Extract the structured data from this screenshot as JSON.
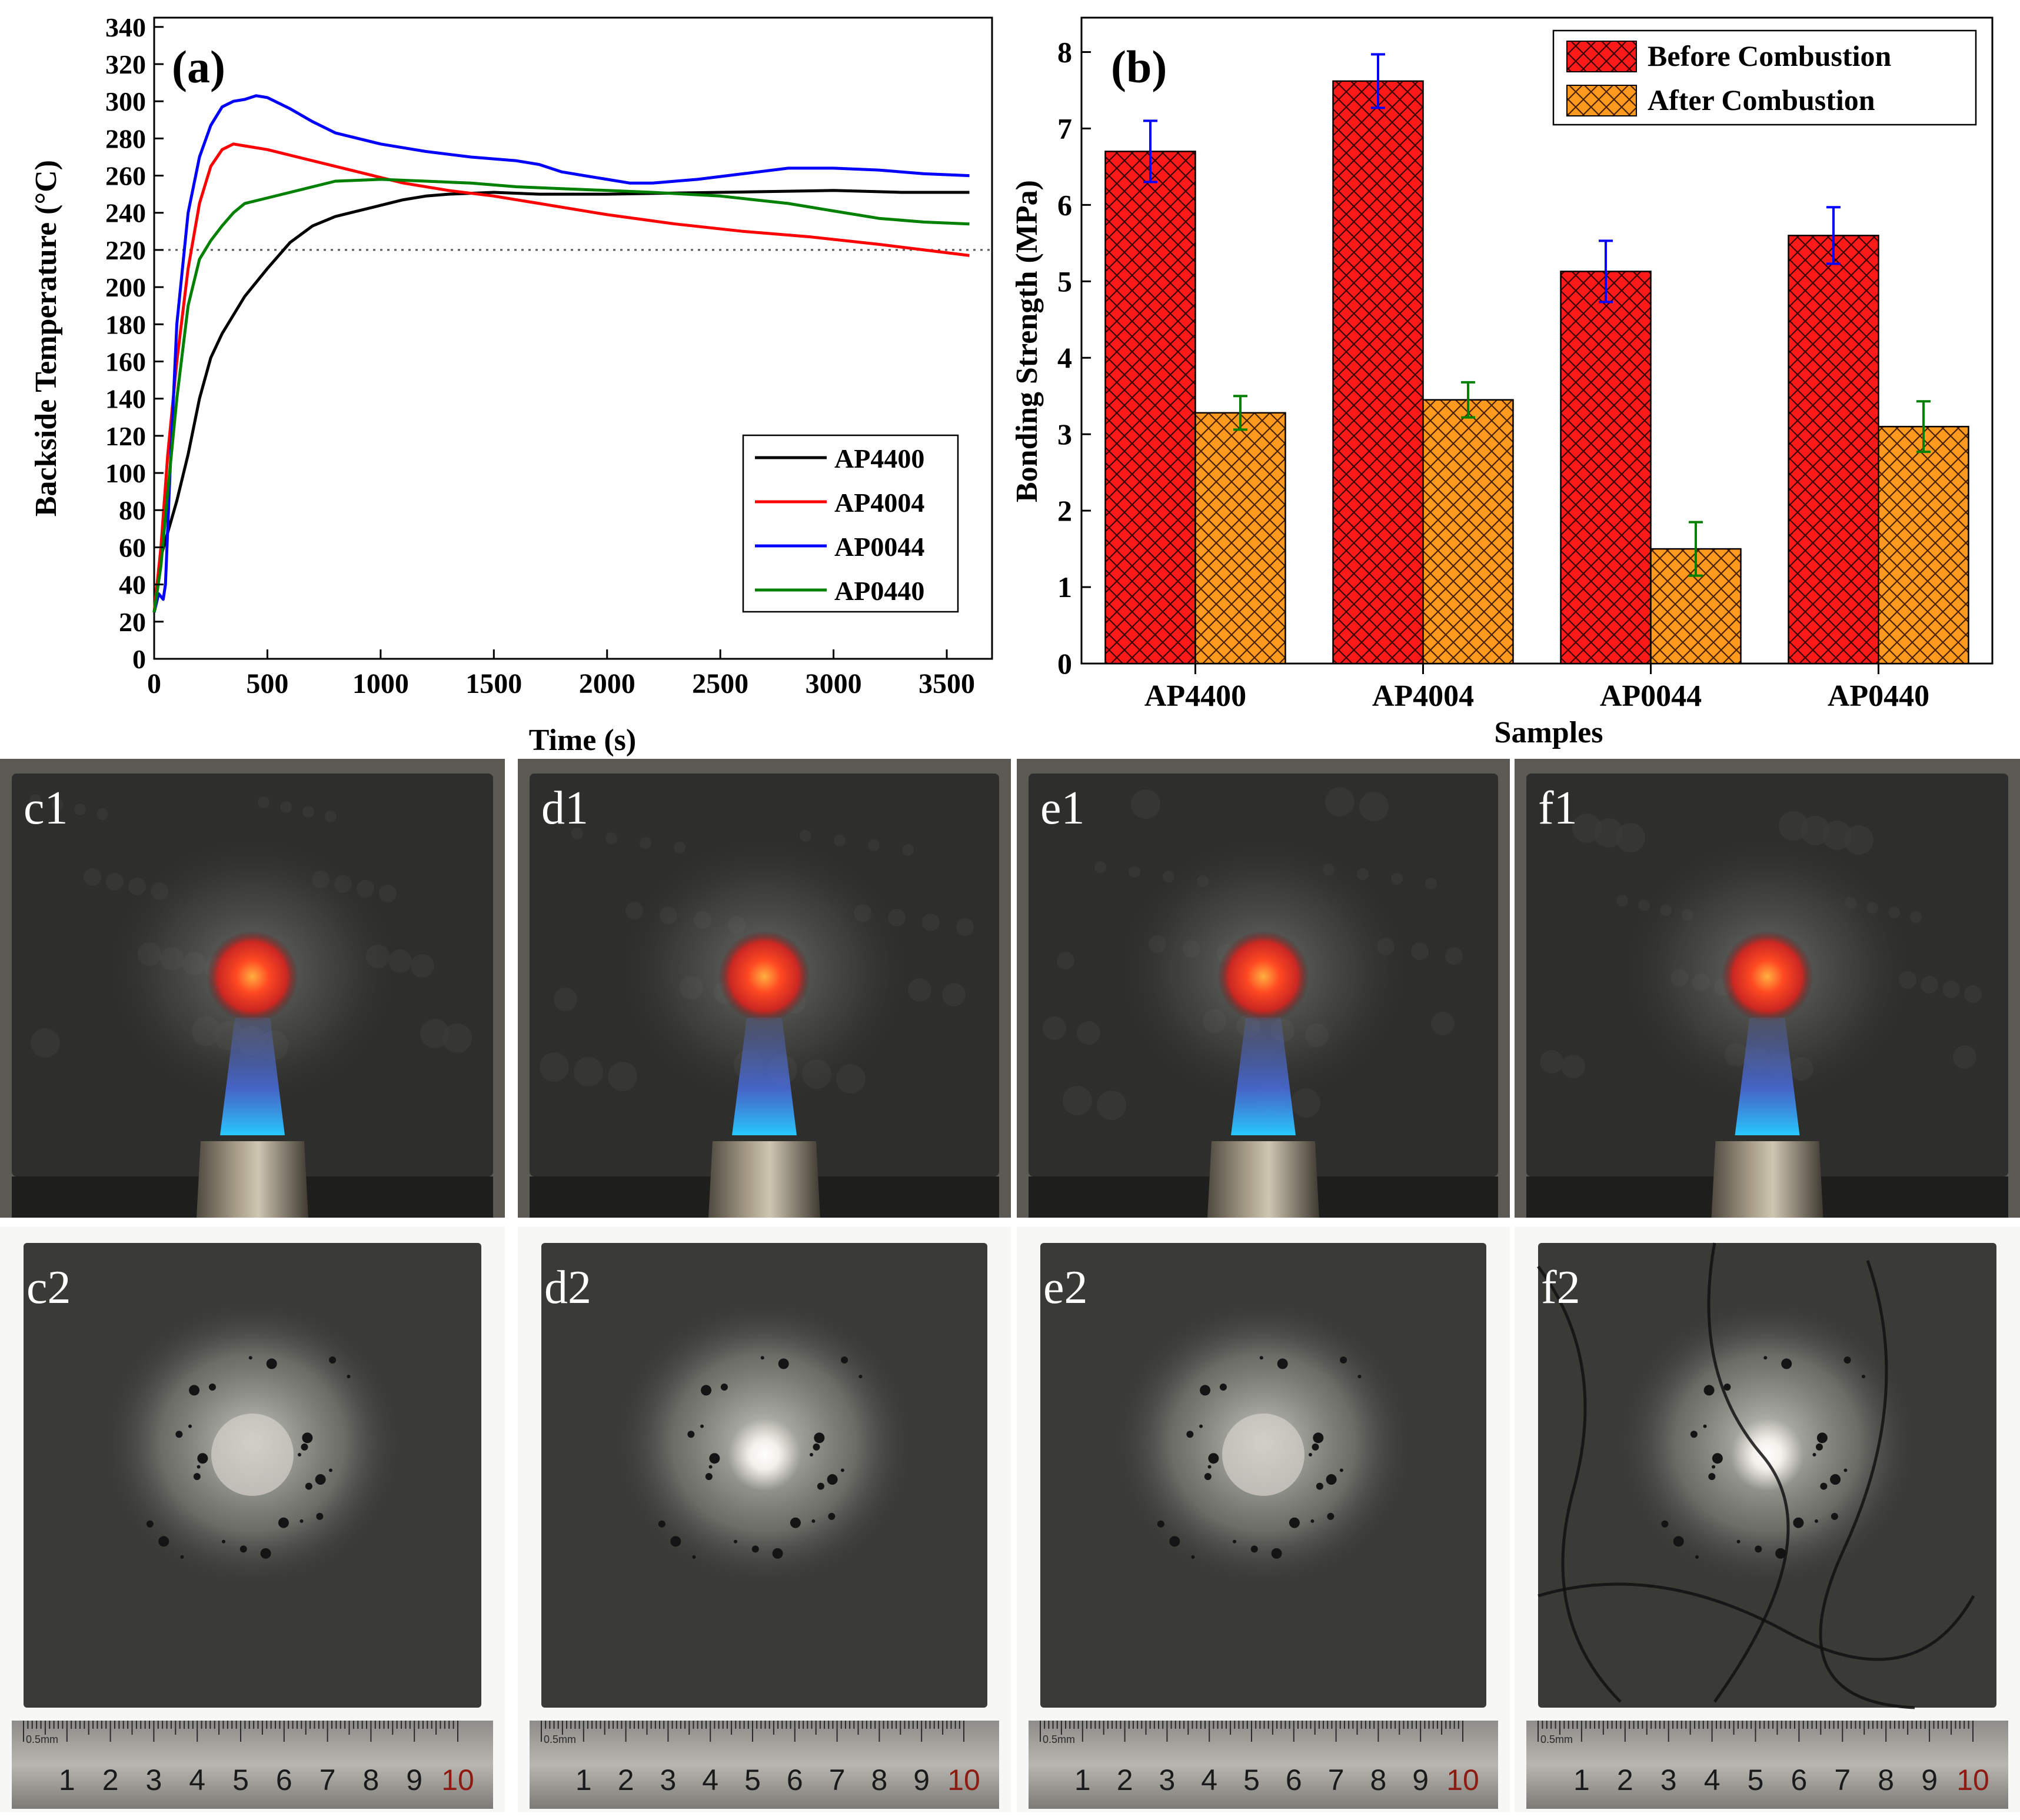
{
  "colors": {
    "AP4400": "#000000",
    "AP4004": "#ff0000",
    "AP0044": "#0000ff",
    "AP0440": "#008000",
    "before_fill": "#ff1a1a",
    "after_fill": "#ff9a1f",
    "before_err": "#0000ff",
    "after_err": "#008000"
  },
  "chart_data": [
    {
      "type": "line",
      "panel_label": "(a)",
      "xlabel": "Time (s)",
      "ylabel": "Backside Temperature (°C)",
      "xlim": [
        0,
        3700
      ],
      "ylim": [
        0,
        345
      ],
      "xticks": [
        0,
        500,
        1000,
        1500,
        2000,
        2500,
        3000,
        3500
      ],
      "yticks": [
        0,
        20,
        40,
        60,
        80,
        100,
        120,
        140,
        160,
        180,
        200,
        220,
        240,
        260,
        280,
        300,
        320,
        340
      ],
      "reference_line_y": 220,
      "legend_position": "lower-right",
      "series": [
        {
          "name": "AP4400",
          "color": "#000000",
          "points": [
            [
              0,
              25
            ],
            [
              30,
              55
            ],
            [
              60,
              68
            ],
            [
              100,
              85
            ],
            [
              150,
              110
            ],
            [
              200,
              140
            ],
            [
              250,
              162
            ],
            [
              300,
              175
            ],
            [
              350,
              185
            ],
            [
              400,
              195
            ],
            [
              500,
              210
            ],
            [
              600,
              224
            ],
            [
              700,
              233
            ],
            [
              800,
              238
            ],
            [
              900,
              241
            ],
            [
              1000,
              244
            ],
            [
              1100,
              247
            ],
            [
              1200,
              249
            ],
            [
              1300,
              250
            ],
            [
              1500,
              251
            ],
            [
              1700,
              250
            ],
            [
              2000,
              250
            ],
            [
              2500,
              251
            ],
            [
              3000,
              252
            ],
            [
              3300,
              251
            ],
            [
              3600,
              251
            ]
          ]
        },
        {
          "name": "AP4004",
          "color": "#ff0000",
          "points": [
            [
              0,
              25
            ],
            [
              30,
              60
            ],
            [
              60,
              110
            ],
            [
              100,
              160
            ],
            [
              150,
              210
            ],
            [
              200,
              245
            ],
            [
              250,
              265
            ],
            [
              300,
              274
            ],
            [
              350,
              277
            ],
            [
              400,
              276
            ],
            [
              500,
              274
            ],
            [
              700,
              268
            ],
            [
              900,
              262
            ],
            [
              1100,
              256
            ],
            [
              1300,
              252
            ],
            [
              1500,
              249
            ],
            [
              1700,
              245
            ],
            [
              2000,
              239
            ],
            [
              2300,
              234
            ],
            [
              2600,
              230
            ],
            [
              2900,
              227
            ],
            [
              3200,
              223
            ],
            [
              3400,
              220
            ],
            [
              3600,
              217
            ]
          ]
        },
        {
          "name": "AP0044",
          "color": "#0000ff",
          "points": [
            [
              0,
              25
            ],
            [
              20,
              35
            ],
            [
              40,
              32
            ],
            [
              50,
              40
            ],
            [
              70,
              100
            ],
            [
              100,
              180
            ],
            [
              150,
              240
            ],
            [
              200,
              270
            ],
            [
              250,
              287
            ],
            [
              300,
              297
            ],
            [
              350,
              300
            ],
            [
              400,
              301
            ],
            [
              450,
              303
            ],
            [
              500,
              302
            ],
            [
              600,
              296
            ],
            [
              700,
              289
            ],
            [
              800,
              283
            ],
            [
              1000,
              277
            ],
            [
              1200,
              273
            ],
            [
              1400,
              270
            ],
            [
              1600,
              268
            ],
            [
              1700,
              266
            ],
            [
              1800,
              262
            ],
            [
              1900,
              260
            ],
            [
              2000,
              258
            ],
            [
              2100,
              256
            ],
            [
              2200,
              256
            ],
            [
              2400,
              258
            ],
            [
              2600,
              261
            ],
            [
              2800,
              264
            ],
            [
              3000,
              264
            ],
            [
              3200,
              263
            ],
            [
              3400,
              261
            ],
            [
              3600,
              260
            ]
          ]
        },
        {
          "name": "AP0440",
          "color": "#008000",
          "points": [
            [
              0,
              25
            ],
            [
              30,
              50
            ],
            [
              60,
              90
            ],
            [
              100,
              140
            ],
            [
              150,
              190
            ],
            [
              200,
              215
            ],
            [
              250,
              225
            ],
            [
              300,
              233
            ],
            [
              350,
              240
            ],
            [
              400,
              245
            ],
            [
              500,
              248
            ],
            [
              600,
              251
            ],
            [
              700,
              254
            ],
            [
              800,
              257
            ],
            [
              1000,
              258
            ],
            [
              1200,
              257
            ],
            [
              1400,
              256
            ],
            [
              1600,
              254
            ],
            [
              1800,
              253
            ],
            [
              2000,
              252
            ],
            [
              2200,
              251
            ],
            [
              2500,
              249
            ],
            [
              2800,
              245
            ],
            [
              3000,
              241
            ],
            [
              3200,
              237
            ],
            [
              3400,
              235
            ],
            [
              3600,
              234
            ]
          ]
        }
      ]
    },
    {
      "type": "bar",
      "panel_label": "(b)",
      "xlabel": "Samples",
      "ylabel": "Bonding Strength (MPa)",
      "ylim": [
        0,
        8.45
      ],
      "yticks": [
        0,
        1,
        2,
        3,
        4,
        5,
        6,
        7,
        8
      ],
      "categories": [
        "AP4400",
        "AP4004",
        "AP0044",
        "AP0440"
      ],
      "legend_position": "top-right",
      "series": [
        {
          "name": "Before Combustion",
          "values": [
            6.7,
            7.62,
            5.13,
            5.6
          ],
          "errors": [
            0.4,
            0.35,
            0.4,
            0.37
          ]
        },
        {
          "name": "After Combustion",
          "values": [
            3.28,
            3.45,
            1.5,
            3.1
          ],
          "errors": [
            0.22,
            0.23,
            0.35,
            0.33
          ]
        }
      ]
    }
  ],
  "photos": {
    "top_labels": [
      "c1",
      "d1",
      "e1",
      "f1"
    ],
    "bottom_labels": [
      "c2",
      "d2",
      "e2",
      "f2"
    ],
    "ruler_numbers": [
      "1",
      "2",
      "3",
      "4",
      "5",
      "6",
      "7",
      "8",
      "9",
      "10"
    ],
    "ruler_unit": "0.5mm"
  }
}
